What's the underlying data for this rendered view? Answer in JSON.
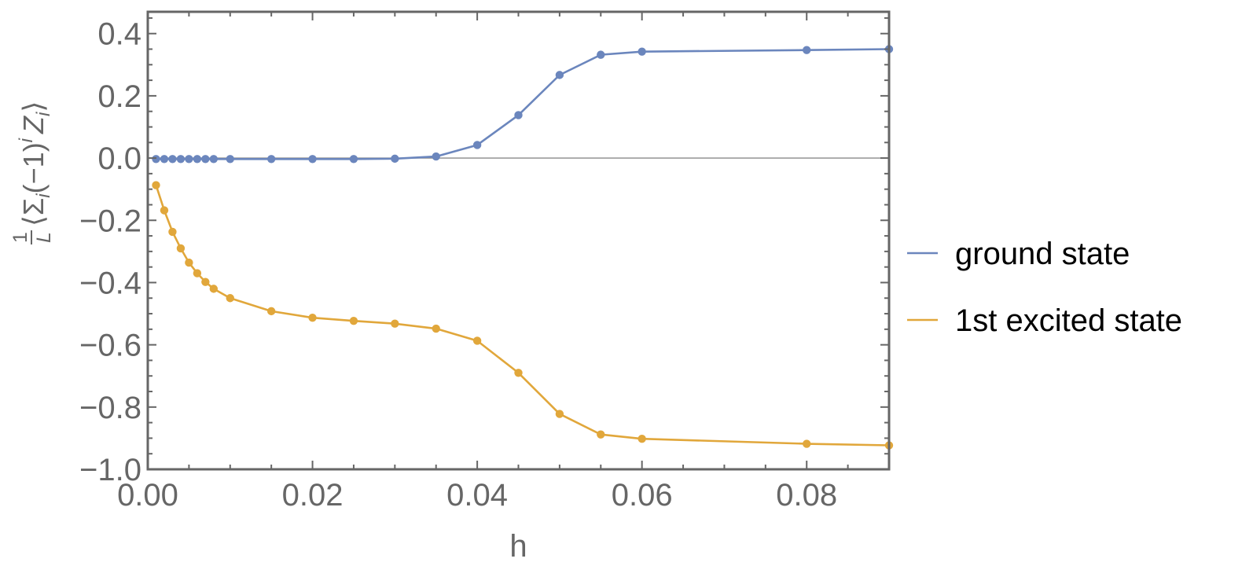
{
  "chart_data": {
    "type": "line",
    "xlabel": "h",
    "ylabel": {
      "frac_num": "1",
      "frac_den": "L",
      "open": "⟨Σ",
      "sub_i1": "i",
      "mid": "(−1)",
      "sup_i": "i",
      "z": "Z",
      "sub_i2": "i",
      "close": "⟩"
    },
    "xlim": [
      0,
      0.09
    ],
    "ylim": [
      -1.0,
      0.47
    ],
    "xticks": [
      {
        "value": 0.0,
        "label": "0.00"
      },
      {
        "value": 0.02,
        "label": "0.02"
      },
      {
        "value": 0.04,
        "label": "0.04"
      },
      {
        "value": 0.06,
        "label": "0.06"
      },
      {
        "value": 0.08,
        "label": "0.08"
      }
    ],
    "yticks": [
      {
        "value": 0.4,
        "label": "0.4"
      },
      {
        "value": 0.2,
        "label": "0.2"
      },
      {
        "value": 0.0,
        "label": "0.0"
      },
      {
        "value": -0.2,
        "label": "−0.2"
      },
      {
        "value": -0.4,
        "label": "−0.4"
      },
      {
        "value": -0.6,
        "label": "−0.6"
      },
      {
        "value": -0.8,
        "label": "−0.8"
      },
      {
        "value": -1.0,
        "label": "−1.0"
      }
    ],
    "grid": false,
    "zero_line": true,
    "legend_position": "right",
    "series": [
      {
        "name": "ground state",
        "color": "#6b86bd",
        "x": [
          0.001,
          0.002,
          0.003,
          0.004,
          0.005,
          0.006,
          0.007,
          0.008,
          0.01,
          0.015,
          0.02,
          0.025,
          0.03,
          0.035,
          0.04,
          0.045,
          0.05,
          0.055,
          0.06,
          0.08,
          0.09
        ],
        "y": [
          -0.003,
          -0.003,
          -0.003,
          -0.003,
          -0.003,
          -0.003,
          -0.003,
          -0.003,
          -0.003,
          -0.003,
          -0.003,
          -0.003,
          -0.002,
          0.005,
          0.042,
          0.138,
          0.267,
          0.332,
          0.342,
          0.347,
          0.35
        ]
      },
      {
        "name": "1st excited state",
        "color": "#e1a73b",
        "x": [
          0.001,
          0.002,
          0.003,
          0.004,
          0.005,
          0.006,
          0.007,
          0.008,
          0.01,
          0.015,
          0.02,
          0.025,
          0.03,
          0.035,
          0.04,
          0.045,
          0.05,
          0.055,
          0.06,
          0.08,
          0.09
        ],
        "y": [
          -0.087,
          -0.168,
          -0.237,
          -0.29,
          -0.336,
          -0.37,
          -0.398,
          -0.42,
          -0.45,
          -0.492,
          -0.513,
          -0.523,
          -0.532,
          -0.548,
          -0.587,
          -0.69,
          -0.822,
          -0.888,
          -0.902,
          -0.918,
          -0.923
        ]
      }
    ]
  }
}
